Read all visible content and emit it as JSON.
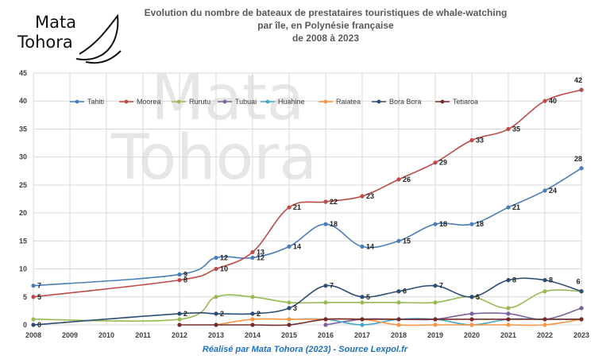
{
  "logo": {
    "line1": "Mata",
    "line2": "Tohora"
  },
  "title": {
    "line1": "Evolution du nombre de bateaux de prestataires touristiques de whale-watching",
    "line2": "par île, en Polynésie française",
    "line3": "de 2008 à 2023"
  },
  "footer": "Réalisé par Mata Tohora (2023) - Source Lexpol.fr",
  "watermark": {
    "line1": "Mata",
    "line2": "Tohora"
  },
  "colors": {
    "Tahiti": "#4a7ebb",
    "Moorea": "#be4b48",
    "Rurutu": "#98b954",
    "Tubuai": "#7d60a0",
    "Huahine": "#46aac5",
    "Raiatea": "#f79646",
    "Bora Bora": "#2c4d75",
    "Tetiaroa": "#772c2a"
  },
  "chart_data": {
    "type": "line",
    "x": [
      2008,
      2009,
      2010,
      2011,
      2012,
      2013,
      2014,
      2015,
      2016,
      2017,
      2018,
      2019,
      2020,
      2021,
      2022,
      2023
    ],
    "ylim": [
      0,
      45
    ],
    "yticks": [
      0,
      5,
      10,
      15,
      20,
      25,
      30,
      35,
      40,
      45
    ],
    "legend_position": "top-left",
    "series": [
      {
        "name": "Tahiti",
        "x": [
          2008,
          2012,
          2013,
          2014,
          2015,
          2016,
          2017,
          2018,
          2019,
          2020,
          2021,
          2022,
          2023
        ],
        "values": [
          7,
          9,
          12,
          12,
          14,
          18,
          14,
          15,
          18,
          18,
          21,
          24,
          28
        ],
        "labels": true
      },
      {
        "name": "Moorea",
        "x": [
          2008,
          2012,
          2013,
          2014,
          2015,
          2016,
          2017,
          2018,
          2019,
          2020,
          2021,
          2022,
          2023
        ],
        "values": [
          5,
          8,
          10,
          13,
          21,
          22,
          23,
          26,
          29,
          33,
          35,
          40,
          42
        ],
        "labels": true
      },
      {
        "name": "Rurutu",
        "x": [
          2008,
          2012,
          2013,
          2014,
          2015,
          2016,
          2017,
          2018,
          2019,
          2020,
          2021,
          2022,
          2023
        ],
        "values": [
          1,
          1,
          5,
          5,
          4,
          4,
          4,
          4,
          4,
          5,
          3,
          6,
          6
        ],
        "labels": false
      },
      {
        "name": "Tubuai",
        "x": [
          2016,
          2017,
          2018,
          2019,
          2020,
          2021,
          2022,
          2023
        ],
        "values": [
          0,
          1,
          1,
          1,
          2,
          2,
          1,
          3
        ],
        "labels": false
      },
      {
        "name": "Huahine",
        "x": [
          2015,
          2016,
          2017,
          2018,
          2019,
          2020,
          2021,
          2022,
          2023
        ],
        "values": [
          1,
          1,
          0,
          1,
          1,
          0,
          1,
          1,
          1
        ],
        "labels": false
      },
      {
        "name": "Raiatea",
        "x": [
          2013,
          2014,
          2015,
          2016,
          2017,
          2018,
          2019,
          2020,
          2021,
          2022,
          2023
        ],
        "values": [
          0,
          1,
          1,
          1,
          1,
          0,
          0,
          0,
          0,
          0,
          1
        ],
        "labels": false
      },
      {
        "name": "Bora Bora",
        "x": [
          2008,
          2012,
          2013,
          2014,
          2015,
          2016,
          2017,
          2018,
          2019,
          2020,
          2021,
          2022,
          2023
        ],
        "values": [
          0,
          2,
          2,
          2,
          3,
          7,
          5,
          6,
          7,
          5,
          8,
          8,
          6
        ],
        "labels": true
      },
      {
        "name": "Tetiaroa",
        "x": [
          2012,
          2013,
          2014,
          2015,
          2016,
          2017,
          2018,
          2019,
          2020,
          2021,
          2022,
          2023
        ],
        "values": [
          0,
          0,
          0,
          0,
          1,
          1,
          1,
          1,
          1,
          1,
          1,
          1
        ],
        "labels": false
      }
    ]
  }
}
